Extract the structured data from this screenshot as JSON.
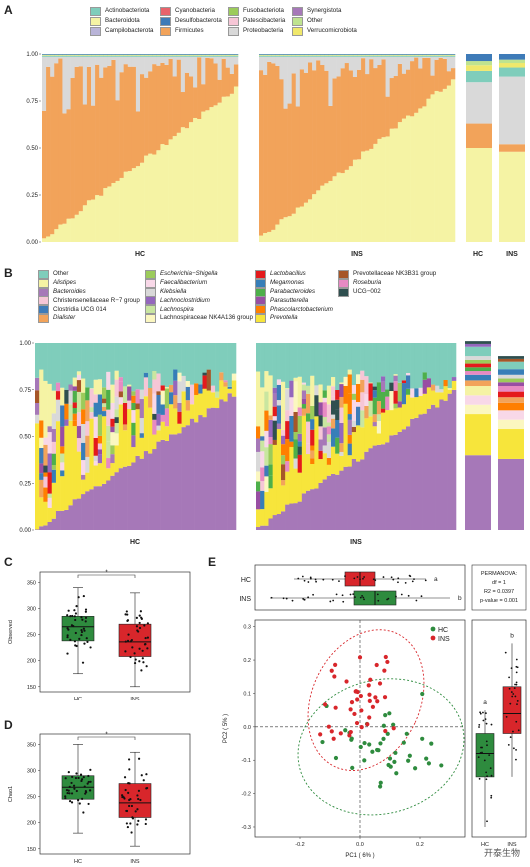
{
  "panels": {
    "A": "A",
    "B": "B",
    "C": "C",
    "D": "D",
    "E": "E"
  },
  "colors": {
    "hc": "#2e8b3e",
    "ins": "#d8262b"
  },
  "legendA": [
    {
      "label": "Actinobacteriota",
      "color": "#7fcdbb"
    },
    {
      "label": "Cyanobacteria",
      "color": "#e8636b"
    },
    {
      "label": "Fusobacteriota",
      "color": "#9ccb5b"
    },
    {
      "label": "Synergistota",
      "color": "#a678b8"
    },
    {
      "label": "Bacteroidota",
      "color": "#f5f3a4"
    },
    {
      "label": "Desulfobacterota",
      "color": "#3e7bb8"
    },
    {
      "label": "Patescibacteria",
      "color": "#f6c6d6"
    },
    {
      "label": "Other",
      "color": "#bfe38f"
    },
    {
      "label": "Campilobacterota",
      "color": "#b9b4d8"
    },
    {
      "label": "Firmicutes",
      "color": "#f2a35a"
    },
    {
      "label": "Proteobacteria",
      "color": "#d9d9d9"
    },
    {
      "label": "Verrucomicrobiota",
      "color": "#f0e86b"
    }
  ],
  "legendB": [
    {
      "label": "Other",
      "color": "#7fcdbb",
      "italic": false
    },
    {
      "label": "Alistipes",
      "color": "#f5f3a4",
      "italic": true
    },
    {
      "label": "Bacteroides",
      "color": "#a678b8",
      "italic": true
    },
    {
      "label": "Christensenellaceae R−7 group",
      "color": "#f6c6d6",
      "italic": false
    },
    {
      "label": "Clostridia UCG 014",
      "color": "#3e7bb8",
      "italic": false
    },
    {
      "label": "Dialister",
      "color": "#f2a35a",
      "italic": true
    },
    {
      "label": "Escherichia−Shigella",
      "color": "#9ccb5b",
      "italic": true
    },
    {
      "label": "Faecalibacterium",
      "color": "#f8d8e8",
      "italic": true
    },
    {
      "label": "Klebsiella",
      "color": "#d9d9d9",
      "italic": true
    },
    {
      "label": "Lachnoclostridium",
      "color": "#9467bd",
      "italic": true
    },
    {
      "label": "Lachnospira",
      "color": "#c9e6a0",
      "italic": true
    },
    {
      "label": "Lachnospiraceae NK4A136 group",
      "color": "#fbf7c0",
      "italic": false
    },
    {
      "label": "Lactobacillus",
      "color": "#e41a1c",
      "italic": true
    },
    {
      "label": "Megamonas",
      "color": "#377eb8",
      "italic": true
    },
    {
      "label": "Parabacteroides",
      "color": "#4daf4a",
      "italic": true
    },
    {
      "label": "Parasutterella",
      "color": "#984ea3",
      "italic": true
    },
    {
      "label": "Phascolarctobacterium",
      "color": "#ff7f00",
      "italic": true
    },
    {
      "label": "Prevotella",
      "color": "#f7e53b",
      "italic": true
    },
    {
      "label": "Prevotellaceae NK3B31 group",
      "color": "#a65628",
      "italic": false
    },
    {
      "label": "Roseburia",
      "color": "#e78ac3",
      "italic": true
    },
    {
      "label": "UCG−002",
      "color": "#2f4f4f",
      "italic": false
    }
  ],
  "chartA": {
    "yticks": [
      "1.00",
      "0.75",
      "0.50",
      "0.25",
      "0.00"
    ],
    "groups": [
      {
        "label": "HC"
      },
      {
        "label": "INS"
      },
      {
        "label": "HC"
      },
      {
        "label": "INS"
      }
    ],
    "summary": [
      {
        "group": "HC",
        "bacteroidota": 0.5,
        "firmicutes": 0.63,
        "proteobacteria": 0.85
      },
      {
        "group": "INS",
        "bacteroidota": 0.48,
        "firmicutes": 0.52,
        "proteobacteria": 0.88
      }
    ]
  },
  "chartB": {
    "yticks": [
      "1.00",
      "0.75",
      "0.50",
      "0.25",
      "0.00"
    ],
    "groups": [
      {
        "label": "HC"
      },
      {
        "label": "INS"
      }
    ]
  },
  "chartC": {
    "type": "box",
    "ylabel": "Observed",
    "yticks": [
      "350",
      "300",
      "250",
      "200",
      "150"
    ],
    "ylim": [
      140,
      370
    ],
    "categories": [
      "HC",
      "INS"
    ],
    "boxes": [
      {
        "name": "HC",
        "q1": 238,
        "median": 265,
        "q3": 285,
        "min": 175,
        "max": 340
      },
      {
        "name": "INS",
        "q1": 208,
        "median": 236,
        "q3": 270,
        "min": 150,
        "max": 330
      }
    ],
    "sig": "*"
  },
  "chartD": {
    "type": "box",
    "ylabel": "Chao1",
    "yticks": [
      "350",
      "300",
      "250",
      "200",
      "150"
    ],
    "ylim": [
      140,
      370
    ],
    "categories": [
      "HC",
      "INS"
    ],
    "boxes": [
      {
        "name": "HC",
        "q1": 245,
        "median": 268,
        "q3": 290,
        "min": 180,
        "max": 350
      },
      {
        "name": "INS",
        "q1": 210,
        "median": 238,
        "q3": 275,
        "min": 155,
        "max": 335
      }
    ],
    "sig": "*"
  },
  "chartE": {
    "type": "scatter",
    "xlabel": "PC1 ( 6% )",
    "ylabel": "PC2 ( 5% )",
    "xticks": [
      "-0.2",
      "0.0",
      "0.2"
    ],
    "yticks": [
      "0.3",
      "0.2",
      "0.1",
      "0.0",
      "-0.1",
      "-0.2",
      "-0.3"
    ],
    "xlim": [
      -0.35,
      0.35
    ],
    "ylim": [
      -0.33,
      0.32
    ],
    "legend": [
      {
        "label": "HC"
      },
      {
        "label": "INS"
      }
    ],
    "permanova": {
      "title": "PERMANOVA:",
      "df": "df = 1",
      "r2": "R2 = 0.0397",
      "p": "p-value = 0.001"
    },
    "topBox": [
      {
        "name": "HC",
        "q1": -0.05,
        "median": 0.0,
        "q3": 0.05,
        "min": -0.22,
        "max": 0.22,
        "letter": "a"
      },
      {
        "name": "INS",
        "q1": -0.02,
        "median": 0.05,
        "q3": 0.12,
        "min": -0.3,
        "max": 0.3,
        "letter": "b"
      }
    ],
    "rightBox": [
      {
        "name": "HC",
        "q1": -0.15,
        "median": -0.08,
        "q3": -0.02,
        "min": -0.3,
        "max": 0.05,
        "letter": "a"
      },
      {
        "name": "INS",
        "q1": -0.02,
        "median": 0.04,
        "q3": 0.12,
        "min": -0.15,
        "max": 0.25,
        "letter": "b"
      }
    ]
  },
  "watermark": "开泰生物"
}
